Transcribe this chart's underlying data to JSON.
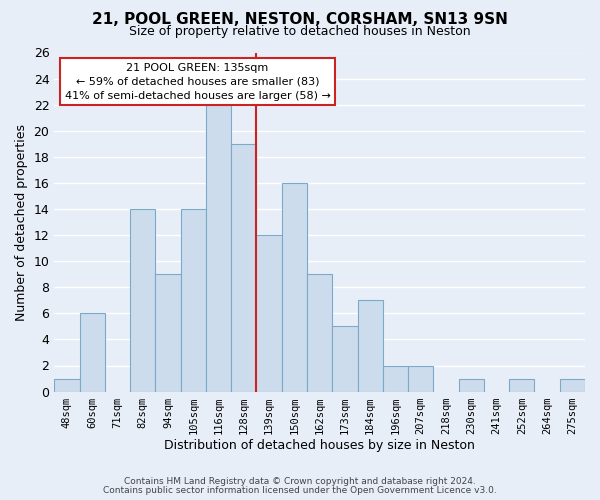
{
  "title": "21, POOL GREEN, NESTON, CORSHAM, SN13 9SN",
  "subtitle": "Size of property relative to detached houses in Neston",
  "xlabel": "Distribution of detached houses by size in Neston",
  "ylabel": "Number of detached properties",
  "bar_color": "#ccdcec",
  "bar_edge_color": "#7aaac8",
  "background_color": "#e8eef8",
  "grid_color": "#ffffff",
  "categories": [
    "48sqm",
    "60sqm",
    "71sqm",
    "82sqm",
    "94sqm",
    "105sqm",
    "116sqm",
    "128sqm",
    "139sqm",
    "150sqm",
    "162sqm",
    "173sqm",
    "184sqm",
    "196sqm",
    "207sqm",
    "218sqm",
    "230sqm",
    "241sqm",
    "252sqm",
    "264sqm",
    "275sqm"
  ],
  "values": [
    1,
    6,
    0,
    14,
    9,
    14,
    22,
    19,
    12,
    16,
    9,
    5,
    7,
    2,
    2,
    0,
    1,
    0,
    1,
    0,
    1
  ],
  "ylim": [
    0,
    26
  ],
  "yticks": [
    0,
    2,
    4,
    6,
    8,
    10,
    12,
    14,
    16,
    18,
    20,
    22,
    24,
    26
  ],
  "property_label": "21 POOL GREEN: 135sqm",
  "annotation_line1": "← 59% of detached houses are smaller (83)",
  "annotation_line2": "41% of semi-detached houses are larger (58) →",
  "annotation_box_color": "white",
  "annotation_box_edge": "#cc2222",
  "property_line_color": "#cc2222",
  "footer1": "Contains HM Land Registry data © Crown copyright and database right 2024.",
  "footer2": "Contains public sector information licensed under the Open Government Licence v3.0."
}
